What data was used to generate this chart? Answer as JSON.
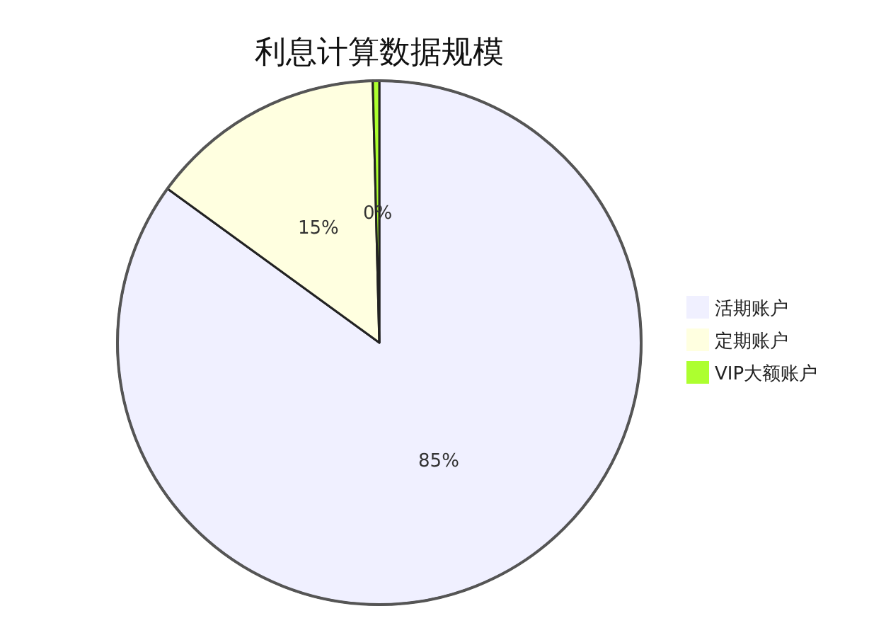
{
  "chart_data": {
    "type": "pie",
    "title": "利息计算数据规模",
    "categories": [
      "活期账户",
      "定期账户",
      "VIP大额账户"
    ],
    "values": [
      85.0,
      14.6,
      0.4
    ],
    "value_labels": [
      "85%",
      "15%",
      "0%"
    ],
    "colors": [
      "#f0f0ff",
      "#ffffe0",
      "#adff2f"
    ],
    "legend": "right"
  }
}
